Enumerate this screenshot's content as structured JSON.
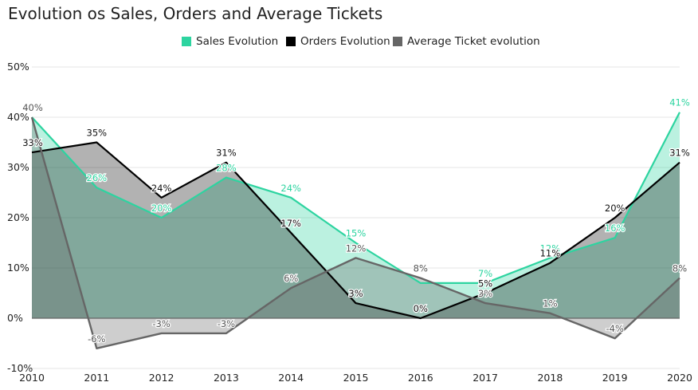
{
  "chart_data": {
    "type": "area",
    "title": "Evolution os Sales, Orders and Average Tickets",
    "categories": [
      "2010",
      "2011",
      "2012",
      "2013",
      "2014",
      "2015",
      "2016",
      "2017",
      "2018",
      "2019",
      "2020"
    ],
    "ylim": [
      -10,
      50
    ],
    "yticks": [
      "-10%",
      "0%",
      "10%",
      "20%",
      "30%",
      "40%",
      "50%"
    ],
    "grid": true,
    "legend_position": "top-center",
    "series": [
      {
        "name": "Sales Evolution",
        "color": "#2dd4a0",
        "values": [
          40,
          26,
          20,
          28,
          24,
          15,
          7,
          7,
          12,
          16,
          41
        ],
        "labels": [
          "",
          "26%",
          "20%",
          "28%",
          "24%",
          "15%",
          "",
          "7%",
          "12%",
          "16%",
          "41%"
        ]
      },
      {
        "name": "Orders Evolution",
        "color": "#000000",
        "values": [
          33,
          35,
          24,
          31,
          17,
          3,
          0,
          5,
          11,
          20,
          31
        ],
        "labels": [
          "33%",
          "35%",
          "24%",
          "31%",
          "17%",
          "3%",
          "0%",
          "5%",
          "11%",
          "20%",
          "31%"
        ]
      },
      {
        "name": "Average Ticket evolution",
        "color": "#666666",
        "values": [
          40,
          -6,
          -3,
          -3,
          6,
          12,
          8,
          3,
          1,
          -4,
          8
        ],
        "labels": [
          "40%",
          "-6%",
          "-3%",
          "-3%",
          "6%",
          "12%",
          "8%",
          "3%",
          "1%",
          "-4%",
          "8%"
        ]
      }
    ]
  }
}
